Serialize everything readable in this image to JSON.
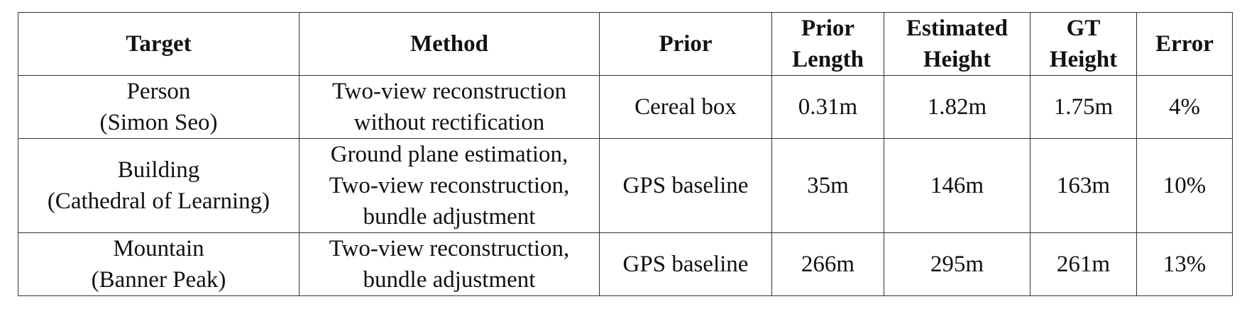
{
  "table": {
    "headers": [
      "Target",
      "Method",
      "Prior",
      "Prior\nLength",
      "Estimated\nHeight",
      "GT\nHeight",
      "Error"
    ],
    "rows": [
      [
        "Person\n(Simon Seo)",
        "Two-view reconstruction\nwithout rectification",
        "Cereal box",
        "0.31m",
        "1.82m",
        "1.75m",
        "4%"
      ],
      [
        "Building\n(Cathedral of Learning)",
        "Ground plane estimation,\nTwo-view reconstruction,\nbundle adjustment",
        "GPS baseline",
        "35m",
        "146m",
        "163m",
        "10%"
      ],
      [
        "Mountain\n(Banner Peak)",
        "Two-view reconstruction,\nbundle adjustment",
        "GPS baseline",
        "266m",
        "295m",
        "261m",
        "13%"
      ]
    ]
  }
}
